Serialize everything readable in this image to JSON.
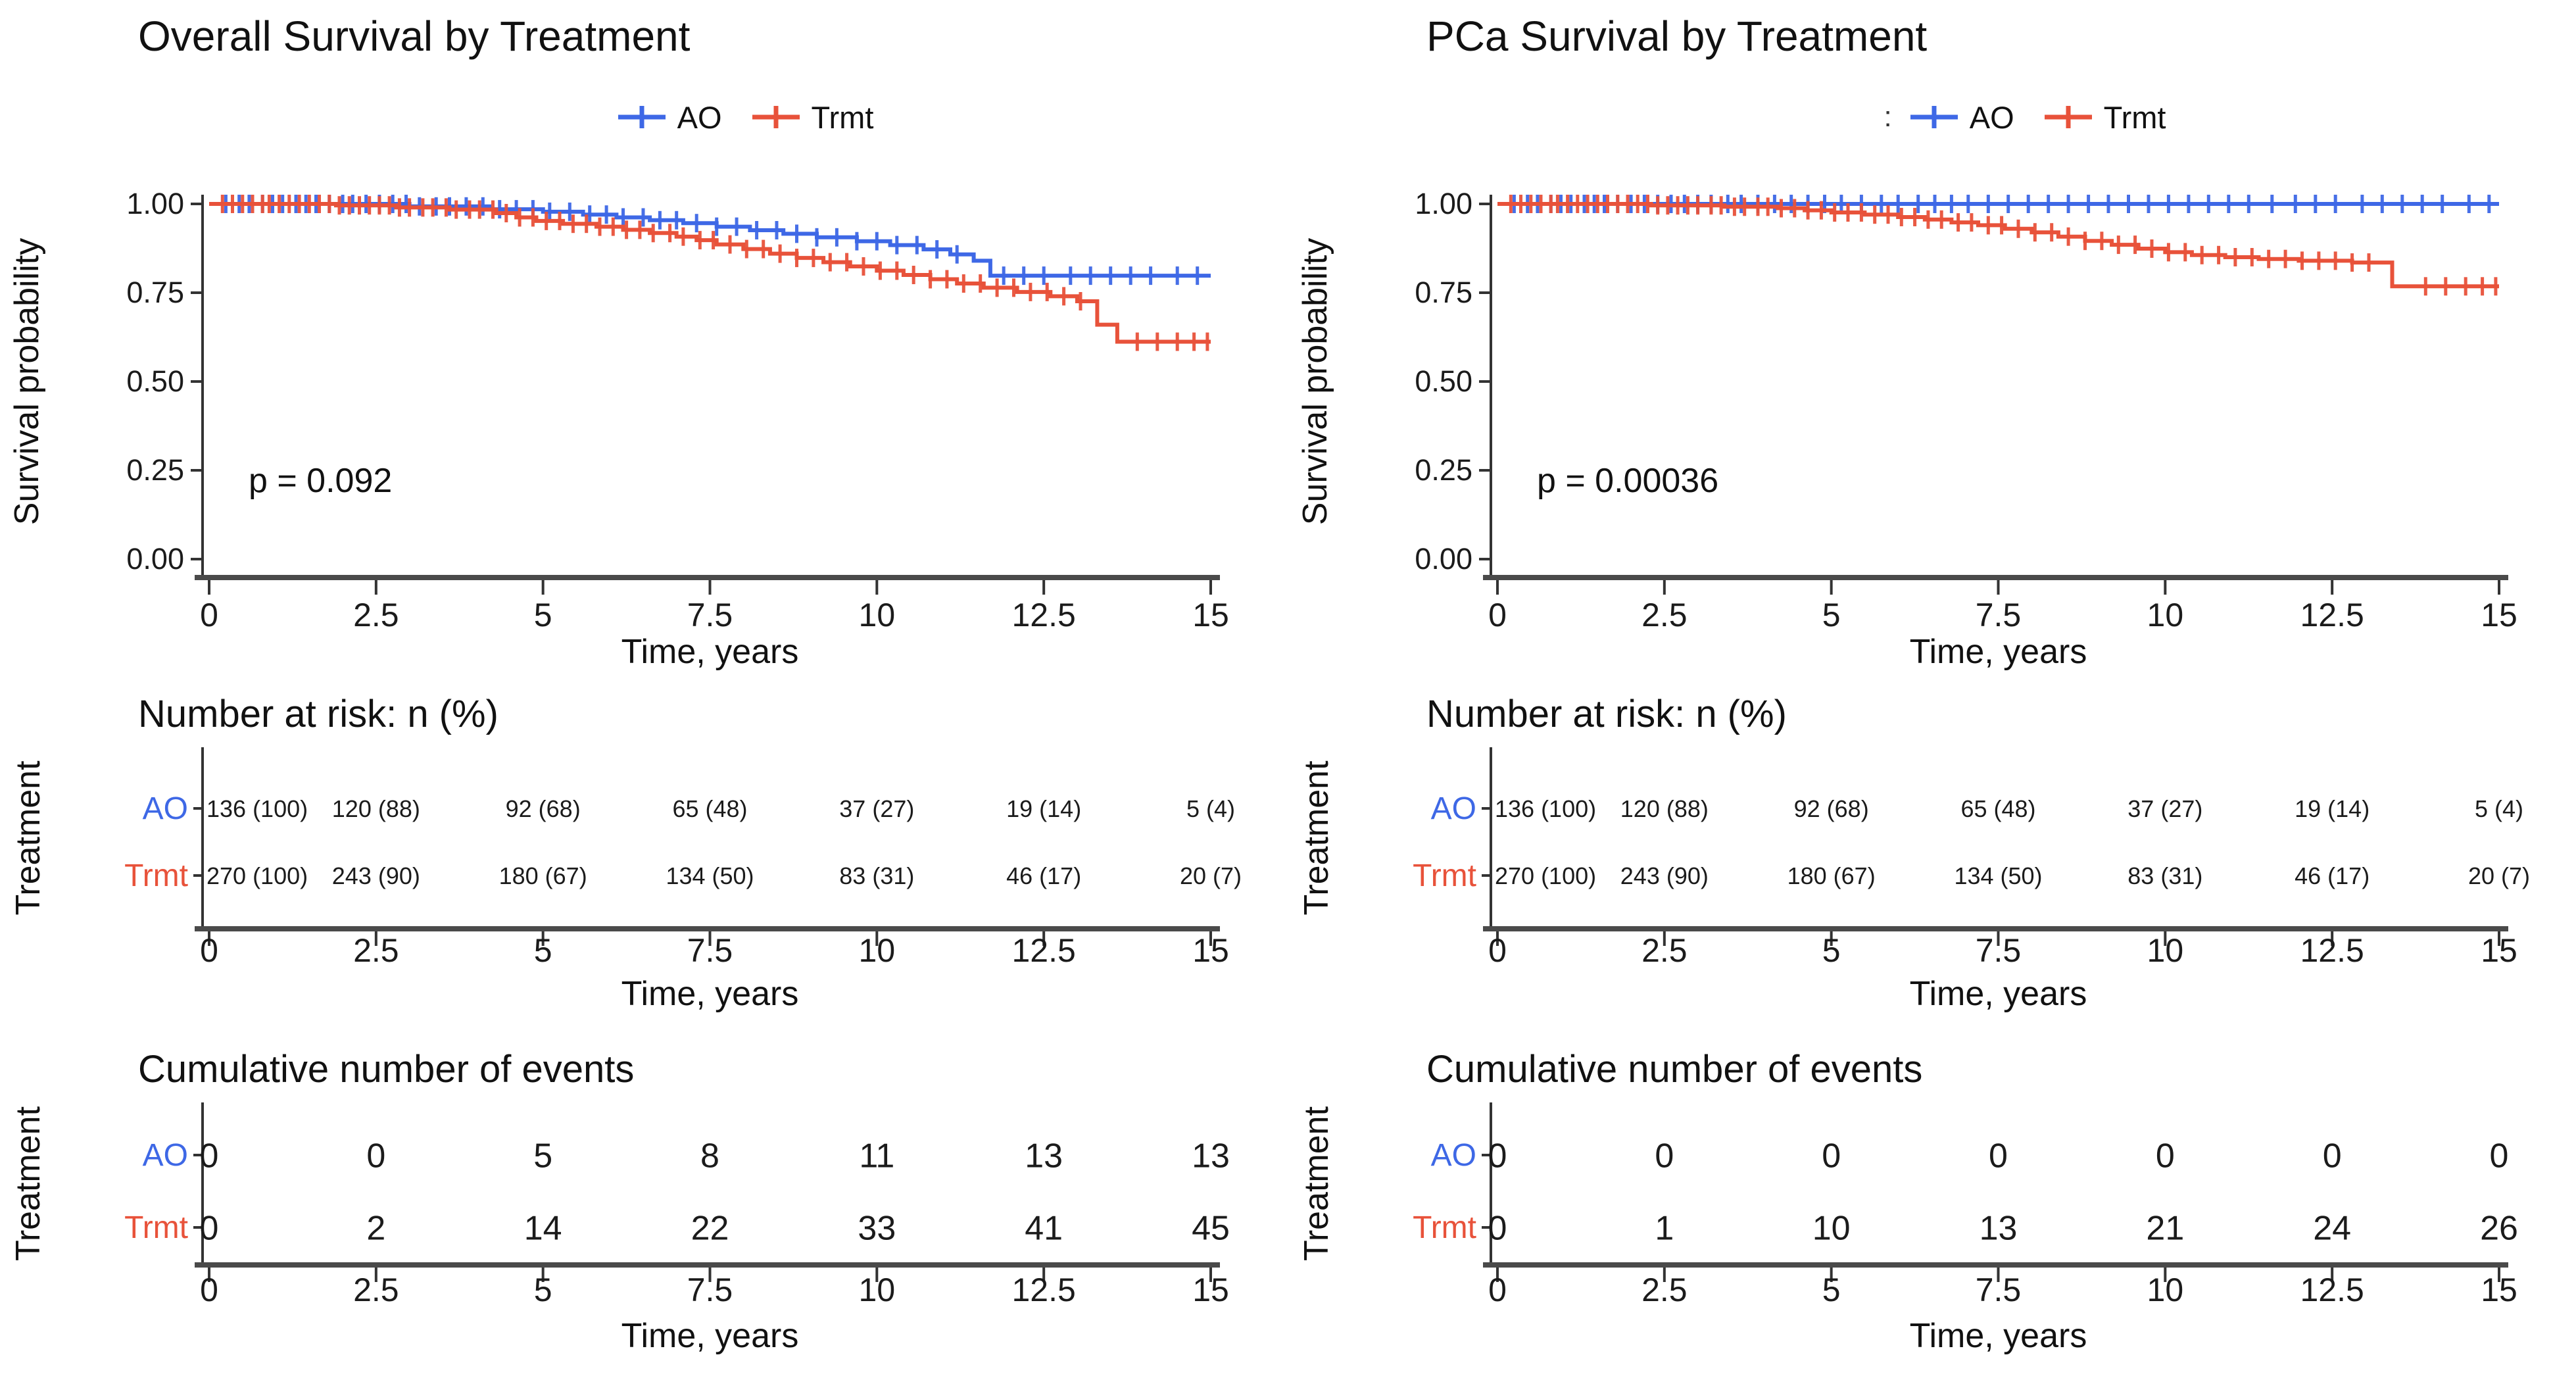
{
  "figure": {
    "background": "#ffffff"
  },
  "colors": {
    "ao": "#3E68E6",
    "trmt": "#E8523A",
    "axis_thick": "#4a4a4a",
    "axis_thin": "#333333",
    "text": "#1b1b1b"
  },
  "chart_data": [
    {
      "type": "line",
      "subtype": "kaplan-meier-step",
      "title": "Overall Survival by Treatment",
      "p_value": "p = 0.092",
      "xlabel": "Time, years",
      "ylabel": "Survival probability",
      "xlim": [
        0,
        15
      ],
      "ylim": [
        0,
        1
      ],
      "xticks": [
        0,
        2.5,
        5,
        7.5,
        10,
        12.5,
        15
      ],
      "yticks": [
        1.0,
        0.75,
        0.5,
        0.25,
        0.0
      ],
      "xtick_labels": [
        "0",
        "2.5",
        "5",
        "7.5",
        "10",
        "12.5",
        "15"
      ],
      "ytick_labels": [
        "1.00",
        "0.75",
        "0.50",
        "0.25",
        "0.00"
      ],
      "legend": {
        "prefix": "",
        "position": "top"
      },
      "grid": false,
      "series": [
        {
          "name": "AO",
          "color": "#3E68E6",
          "step_points": [
            [
              0,
              1.0
            ],
            [
              3.0,
              0.993
            ],
            [
              4.2,
              0.985
            ],
            [
              5.0,
              0.978
            ],
            [
              5.6,
              0.97
            ],
            [
              6.1,
              0.962
            ],
            [
              6.6,
              0.954
            ],
            [
              7.1,
              0.946
            ],
            [
              7.6,
              0.936
            ],
            [
              8.1,
              0.926
            ],
            [
              8.6,
              0.916
            ],
            [
              9.1,
              0.906
            ],
            [
              9.7,
              0.895
            ],
            [
              10.2,
              0.884
            ],
            [
              10.7,
              0.872
            ],
            [
              11.1,
              0.858
            ],
            [
              11.45,
              0.84
            ],
            [
              11.7,
              0.798
            ],
            [
              15,
              0.798
            ]
          ],
          "censor_times": [
            0.25,
            0.45,
            0.6,
            0.8,
            0.95,
            1.1,
            1.3,
            1.45,
            1.6,
            1.8,
            2.0,
            2.15,
            2.35,
            2.55,
            2.75,
            2.95,
            3.15,
            3.4,
            3.6,
            3.85,
            4.1,
            4.35,
            4.6,
            4.85,
            5.1,
            5.4,
            5.7,
            5.95,
            6.2,
            6.5,
            6.75,
            7.0,
            7.3,
            7.6,
            7.9,
            8.2,
            8.5,
            8.8,
            9.1,
            9.4,
            9.7,
            10.0,
            10.3,
            10.6,
            10.9,
            11.2,
            11.9,
            12.2,
            12.5,
            12.9,
            13.2,
            13.5,
            13.8,
            14.1,
            14.5,
            14.8
          ]
        },
        {
          "name": "Trmt",
          "color": "#E8523A",
          "step_points": [
            [
              0,
              1.0
            ],
            [
              1.9,
              0.996
            ],
            [
              2.8,
              0.99
            ],
            [
              3.6,
              0.984
            ],
            [
              4.3,
              0.974
            ],
            [
              4.6,
              0.962
            ],
            [
              4.9,
              0.952
            ],
            [
              5.3,
              0.944
            ],
            [
              5.8,
              0.936
            ],
            [
              6.2,
              0.927
            ],
            [
              6.6,
              0.918
            ],
            [
              7.0,
              0.908
            ],
            [
              7.3,
              0.898
            ],
            [
              7.6,
              0.886
            ],
            [
              8.0,
              0.873
            ],
            [
              8.4,
              0.86
            ],
            [
              8.8,
              0.848
            ],
            [
              9.2,
              0.836
            ],
            [
              9.6,
              0.824
            ],
            [
              10.0,
              0.812
            ],
            [
              10.4,
              0.8
            ],
            [
              10.8,
              0.788
            ],
            [
              11.2,
              0.776
            ],
            [
              11.6,
              0.764
            ],
            [
              12.1,
              0.752
            ],
            [
              12.6,
              0.74
            ],
            [
              13.0,
              0.726
            ],
            [
              13.3,
              0.66
            ],
            [
              13.6,
              0.612
            ],
            [
              15,
              0.612
            ]
          ],
          "censor_times": [
            0.2,
            0.35,
            0.5,
            0.65,
            0.8,
            0.9,
            1.05,
            1.2,
            1.35,
            1.5,
            1.65,
            1.8,
            1.95,
            2.1,
            2.25,
            2.4,
            2.55,
            2.7,
            2.85,
            3.0,
            3.2,
            3.35,
            3.55,
            3.7,
            3.9,
            4.05,
            4.25,
            4.45,
            4.65,
            4.85,
            5.05,
            5.25,
            5.45,
            5.65,
            5.85,
            6.05,
            6.25,
            6.45,
            6.65,
            6.9,
            7.1,
            7.35,
            7.55,
            7.8,
            8.05,
            8.3,
            8.55,
            8.8,
            9.05,
            9.3,
            9.55,
            9.8,
            10.05,
            10.3,
            10.55,
            10.8,
            11.05,
            11.3,
            11.55,
            11.8,
            12.05,
            12.3,
            12.55,
            12.8,
            13.05,
            13.9,
            14.2,
            14.5,
            14.75,
            14.95
          ]
        }
      ],
      "risk_table": {
        "header": "Number at risk: n (%)",
        "axis_label": "Treatment",
        "xlabel": "Time, years",
        "times": [
          0,
          2.5,
          5,
          7.5,
          10,
          12.5,
          15
        ],
        "rows": [
          {
            "name": "AO",
            "color": "#3E68E6",
            "values": [
              "136 (100)",
              "120 (88)",
              "92 (68)",
              "65 (48)",
              "37 (27)",
              "19 (14)",
              "5 (4)"
            ]
          },
          {
            "name": "Trmt",
            "color": "#E8523A",
            "values": [
              "270 (100)",
              "243 (90)",
              "180 (67)",
              "134 (50)",
              "83 (31)",
              "46 (17)",
              "20 (7)"
            ]
          }
        ]
      },
      "events_table": {
        "header": "Cumulative number of events",
        "axis_label": "Treatment",
        "xlabel": "Time, years",
        "times": [
          0,
          2.5,
          5,
          7.5,
          10,
          12.5,
          15
        ],
        "rows": [
          {
            "name": "AO",
            "color": "#3E68E6",
            "values": [
              "0",
              "0",
              "5",
              "8",
              "11",
              "13",
              "13"
            ]
          },
          {
            "name": "Trmt",
            "color": "#E8523A",
            "values": [
              "0",
              "2",
              "14",
              "22",
              "33",
              "41",
              "45"
            ]
          }
        ]
      }
    },
    {
      "type": "line",
      "subtype": "kaplan-meier-step",
      "title": "PCa Survival by Treatment",
      "p_value": "p = 0.00036",
      "xlabel": "Time, years",
      "ylabel": "Survival probability",
      "xlim": [
        0,
        15
      ],
      "ylim": [
        0,
        1
      ],
      "xticks": [
        0,
        2.5,
        5,
        7.5,
        10,
        12.5,
        15
      ],
      "yticks": [
        1.0,
        0.75,
        0.5,
        0.25,
        0.0
      ],
      "xtick_labels": [
        "0",
        "2.5",
        "5",
        "7.5",
        "10",
        "12.5",
        "15"
      ],
      "ytick_labels": [
        "1.00",
        "0.75",
        "0.50",
        "0.25",
        "0.00"
      ],
      "legend": {
        "prefix": ":",
        "position": "top"
      },
      "grid": false,
      "series": [
        {
          "name": "AO",
          "color": "#3E68E6",
          "step_points": [
            [
              0,
              1.0
            ],
            [
              15,
              1.0
            ]
          ],
          "censor_times": [
            0.25,
            0.45,
            0.6,
            0.8,
            0.95,
            1.1,
            1.3,
            1.45,
            1.6,
            1.8,
            2.0,
            2.2,
            2.4,
            2.6,
            2.8,
            3.0,
            3.2,
            3.45,
            3.65,
            3.9,
            4.15,
            4.4,
            4.65,
            4.9,
            5.15,
            5.45,
            5.75,
            6.0,
            6.3,
            6.55,
            6.8,
            7.05,
            7.35,
            7.65,
            7.95,
            8.25,
            8.55,
            8.85,
            9.15,
            9.45,
            9.75,
            10.05,
            10.35,
            10.65,
            10.95,
            11.25,
            11.6,
            11.95,
            12.25,
            12.55,
            12.95,
            13.25,
            13.55,
            13.85,
            14.15,
            14.55,
            14.85
          ]
        },
        {
          "name": "Trmt",
          "color": "#E8523A",
          "step_points": [
            [
              0,
              1.0
            ],
            [
              2.3,
              0.996
            ],
            [
              3.4,
              0.992
            ],
            [
              4.2,
              0.988
            ],
            [
              4.6,
              0.982
            ],
            [
              5.0,
              0.976
            ],
            [
              5.5,
              0.97
            ],
            [
              6.0,
              0.963
            ],
            [
              6.4,
              0.956
            ],
            [
              6.8,
              0.948
            ],
            [
              7.2,
              0.94
            ],
            [
              7.6,
              0.93
            ],
            [
              8.0,
              0.92
            ],
            [
              8.4,
              0.908
            ],
            [
              8.8,
              0.896
            ],
            [
              9.2,
              0.885
            ],
            [
              9.6,
              0.874
            ],
            [
              10.0,
              0.864
            ],
            [
              10.4,
              0.856
            ],
            [
              10.9,
              0.85
            ],
            [
              11.4,
              0.845
            ],
            [
              12.0,
              0.84
            ],
            [
              12.8,
              0.835
            ],
            [
              13.4,
              0.768
            ],
            [
              15,
              0.768
            ]
          ],
          "censor_times": [
            0.2,
            0.35,
            0.5,
            0.65,
            0.8,
            0.9,
            1.05,
            1.2,
            1.35,
            1.5,
            1.65,
            1.8,
            1.95,
            2.1,
            2.25,
            2.4,
            2.55,
            2.7,
            2.85,
            3.0,
            3.2,
            3.35,
            3.55,
            3.7,
            3.9,
            4.05,
            4.25,
            4.45,
            4.65,
            4.85,
            5.05,
            5.25,
            5.45,
            5.65,
            5.85,
            6.05,
            6.25,
            6.45,
            6.65,
            6.9,
            7.1,
            7.35,
            7.55,
            7.8,
            8.05,
            8.3,
            8.55,
            8.8,
            9.05,
            9.3,
            9.55,
            9.8,
            10.05,
            10.3,
            10.55,
            10.8,
            11.05,
            11.3,
            11.55,
            11.8,
            12.05,
            12.3,
            12.55,
            12.8,
            13.05,
            13.9,
            14.2,
            14.5,
            14.75,
            14.95
          ]
        }
      ],
      "risk_table": {
        "header": "Number at risk: n (%)",
        "axis_label": "Treatment",
        "xlabel": "Time, years",
        "times": [
          0,
          2.5,
          5,
          7.5,
          10,
          12.5,
          15
        ],
        "rows": [
          {
            "name": "AO",
            "color": "#3E68E6",
            "values": [
              "136 (100)",
              "120 (88)",
              "92 (68)",
              "65 (48)",
              "37 (27)",
              "19 (14)",
              "5 (4)"
            ]
          },
          {
            "name": "Trmt",
            "color": "#E8523A",
            "values": [
              "270 (100)",
              "243 (90)",
              "180 (67)",
              "134 (50)",
              "83 (31)",
              "46 (17)",
              "20 (7)"
            ]
          }
        ]
      },
      "events_table": {
        "header": "Cumulative number of events",
        "axis_label": "Treatment",
        "xlabel": "Time, years",
        "times": [
          0,
          2.5,
          5,
          7.5,
          10,
          12.5,
          15
        ],
        "rows": [
          {
            "name": "AO",
            "color": "#3E68E6",
            "values": [
              "0",
              "0",
              "0",
              "0",
              "0",
              "0",
              "0"
            ]
          },
          {
            "name": "Trmt",
            "color": "#E8523A",
            "values": [
              "0",
              "1",
              "10",
              "13",
              "21",
              "24",
              "26"
            ]
          }
        ]
      }
    }
  ]
}
